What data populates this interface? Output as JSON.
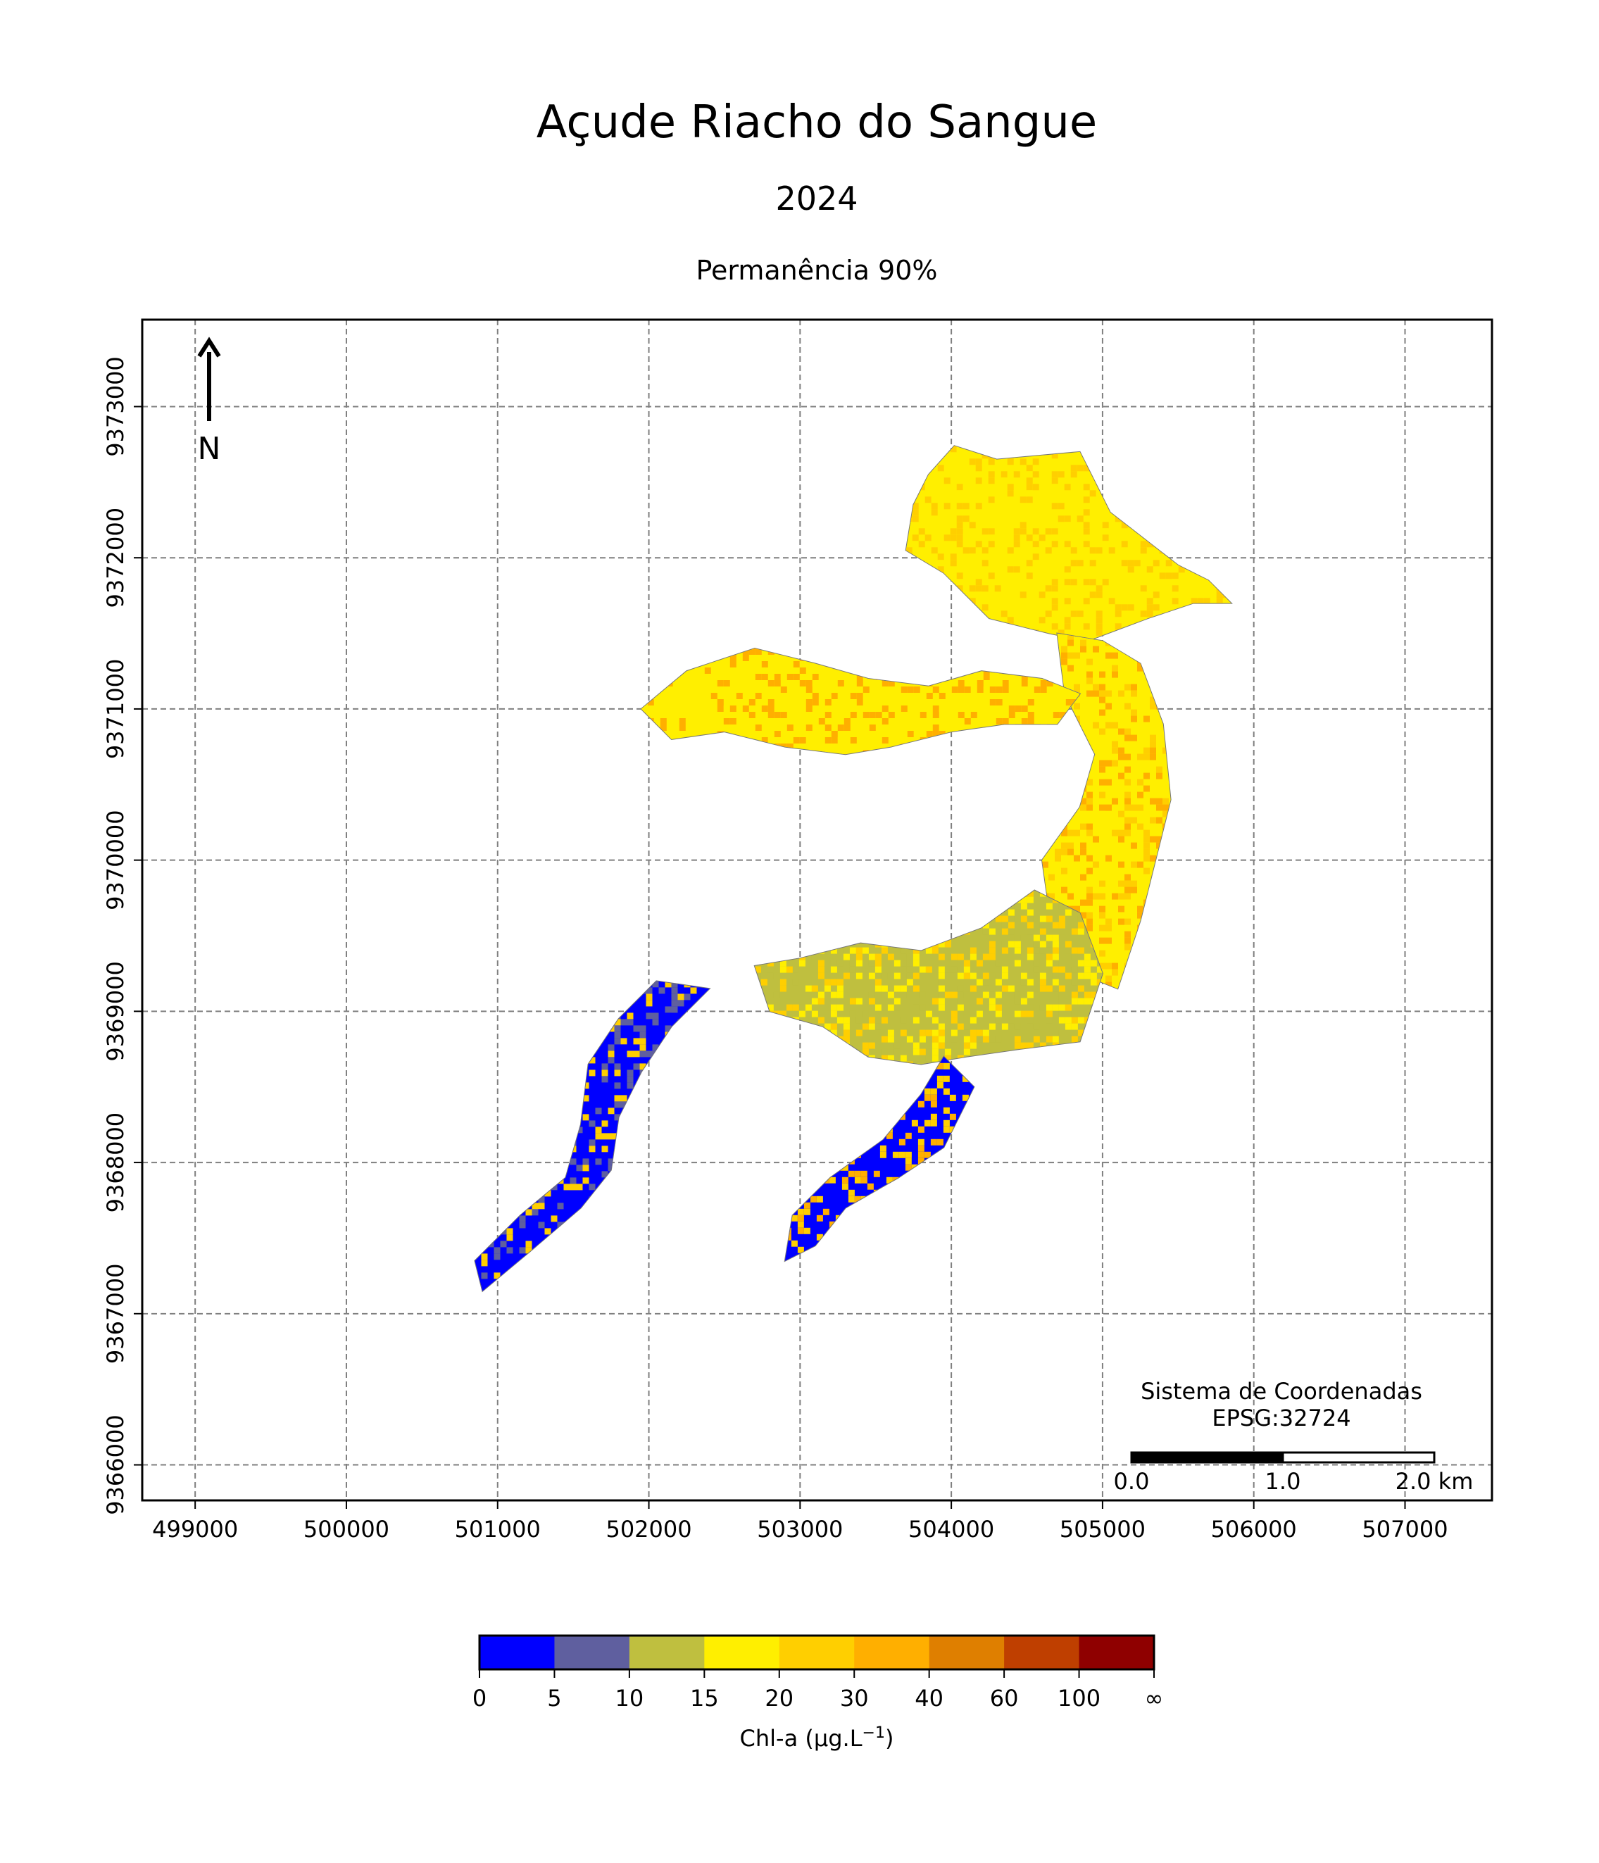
{
  "title": "Açude Riacho do Sangue",
  "subtitle": "2024",
  "panel_title": "Permanência 90%",
  "north_arrow_label": "N",
  "crs": {
    "line1": "Sistema de Coordenadas",
    "line2": "EPSG:32724"
  },
  "scalebar": {
    "labels": [
      "0.0",
      "1.0",
      "2.0 km"
    ]
  },
  "map_extent": {
    "x_min": 498650,
    "x_max": 507575,
    "y_min": 9365765,
    "y_max": 9373575
  },
  "axes": {
    "x_ticks": [
      499000,
      500000,
      501000,
      502000,
      503000,
      504000,
      505000,
      506000,
      507000
    ],
    "y_ticks": [
      9366000,
      9367000,
      9368000,
      9369000,
      9370000,
      9371000,
      9372000,
      9373000
    ],
    "grid": true,
    "grid_style": "dashed"
  },
  "colorbar": {
    "label": "Chl-a (µg.L",
    "label_sup": "−1",
    "label_close": ")",
    "ticks": [
      "0",
      "5",
      "10",
      "15",
      "20",
      "30",
      "40",
      "60",
      "100",
      "∞"
    ],
    "colors": [
      "#0000ff",
      "#5f5f9f",
      "#bfbf3f",
      "#ffef00",
      "#ffcf00",
      "#ffaf00",
      "#df7f00",
      "#bf3f00",
      "#8f0000"
    ]
  },
  "chart_data": {
    "type": "heatmap",
    "title": "Açude Riacho do Sangue",
    "subtitle": "2024",
    "panel_title": "Permanência 90%",
    "xlabel": "",
    "ylabel": "",
    "xlim": [
      498650,
      507575
    ],
    "ylim": [
      9365765,
      9373575
    ],
    "legend": "colorbar bottom",
    "bins": [
      {
        "range": "0-5",
        "color": "#0000ff"
      },
      {
        "range": "5-10",
        "color": "#5f5f9f"
      },
      {
        "range": "10-15",
        "color": "#bfbf3f"
      },
      {
        "range": "15-20",
        "color": "#ffef00"
      },
      {
        "range": "20-30",
        "color": "#ffcf00"
      },
      {
        "range": "30-40",
        "color": "#ffaf00"
      },
      {
        "range": "40-60",
        "color": "#df7f00"
      },
      {
        "range": "60-100",
        "color": "#bf3f00"
      },
      {
        "range": "100-∞",
        "color": "#8f0000"
      }
    ],
    "reservoir_regions": [
      {
        "name": "north-lobe",
        "dominant_bins": [
          "15-20",
          "20-30"
        ],
        "outline": [
          [
            504020,
            9372740
          ],
          [
            504300,
            9372650
          ],
          [
            504850,
            9372700
          ],
          [
            505050,
            9372300
          ],
          [
            505500,
            9371950
          ],
          [
            505700,
            9371850
          ],
          [
            505850,
            9371700
          ],
          [
            505600,
            9371700
          ],
          [
            505300,
            9371600
          ],
          [
            504900,
            9371450
          ],
          [
            504650,
            9371500
          ],
          [
            504250,
            9371600
          ],
          [
            503950,
            9371900
          ],
          [
            503700,
            9372050
          ],
          [
            503750,
            9372350
          ],
          [
            503850,
            9372550
          ]
        ]
      },
      {
        "name": "east-channel",
        "dominant_bins": [
          "15-20",
          "20-30",
          "30-40"
        ],
        "outline": [
          [
            504700,
            9371500
          ],
          [
            505000,
            9371450
          ],
          [
            505250,
            9371300
          ],
          [
            505400,
            9370900
          ],
          [
            505450,
            9370400
          ],
          [
            505350,
            9370000
          ],
          [
            505250,
            9369600
          ],
          [
            505100,
            9369150
          ],
          [
            504850,
            9369250
          ],
          [
            504650,
            9369650
          ],
          [
            504600,
            9370000
          ],
          [
            504850,
            9370350
          ],
          [
            504950,
            9370700
          ],
          [
            504750,
            9371100
          ]
        ]
      },
      {
        "name": "west-arm",
        "dominant_bins": [
          "15-20",
          "30-40"
        ],
        "outline": [
          [
            501950,
            9371000
          ],
          [
            502250,
            9371250
          ],
          [
            502700,
            9371400
          ],
          [
            503100,
            9371300
          ],
          [
            503450,
            9371200
          ],
          [
            503850,
            9371150
          ],
          [
            504200,
            9371250
          ],
          [
            504600,
            9371200
          ],
          [
            504850,
            9371100
          ],
          [
            504700,
            9370900
          ],
          [
            504350,
            9370900
          ],
          [
            504000,
            9370850
          ],
          [
            503600,
            9370750
          ],
          [
            503300,
            9370700
          ],
          [
            502900,
            9370750
          ],
          [
            502500,
            9370850
          ],
          [
            502150,
            9370800
          ]
        ]
      },
      {
        "name": "central-basin",
        "dominant_bins": [
          "10-15",
          "15-20",
          "20-30"
        ],
        "outline": [
          [
            502700,
            9369300
          ],
          [
            503000,
            9369350
          ],
          [
            503400,
            9369450
          ],
          [
            503800,
            9369400
          ],
          [
            504200,
            9369550
          ],
          [
            504550,
            9369800
          ],
          [
            504850,
            9369650
          ],
          [
            505000,
            9369250
          ],
          [
            504850,
            9368800
          ],
          [
            504450,
            9368750
          ],
          [
            504100,
            9368700
          ],
          [
            503800,
            9368650
          ],
          [
            503450,
            9368700
          ],
          [
            503150,
            9368900
          ],
          [
            502800,
            9369000
          ]
        ]
      },
      {
        "name": "southwest-arm",
        "dominant_bins": [
          "0-5",
          "5-10",
          "20-30"
        ],
        "outline": [
          [
            502400,
            9369150
          ],
          [
            502150,
            9368900
          ],
          [
            501950,
            9368600
          ],
          [
            501800,
            9368300
          ],
          [
            501750,
            9367950
          ],
          [
            501550,
            9367700
          ],
          [
            501200,
            9367400
          ],
          [
            500900,
            9367150
          ],
          [
            500850,
            9367350
          ],
          [
            501150,
            9367650
          ],
          [
            501450,
            9367900
          ],
          [
            501550,
            9368250
          ],
          [
            501600,
            9368650
          ],
          [
            501800,
            9368950
          ],
          [
            502050,
            9369200
          ]
        ]
      },
      {
        "name": "south-arm",
        "dominant_bins": [
          "0-5",
          "20-30",
          "30-40"
        ],
        "outline": [
          [
            503950,
            9368700
          ],
          [
            504150,
            9368500
          ],
          [
            503950,
            9368100
          ],
          [
            503650,
            9367900
          ],
          [
            503300,
            9367700
          ],
          [
            503100,
            9367450
          ],
          [
            502900,
            9367350
          ],
          [
            502950,
            9367650
          ],
          [
            503200,
            9367900
          ],
          [
            503550,
            9368150
          ],
          [
            503800,
            9368450
          ]
        ]
      }
    ]
  }
}
